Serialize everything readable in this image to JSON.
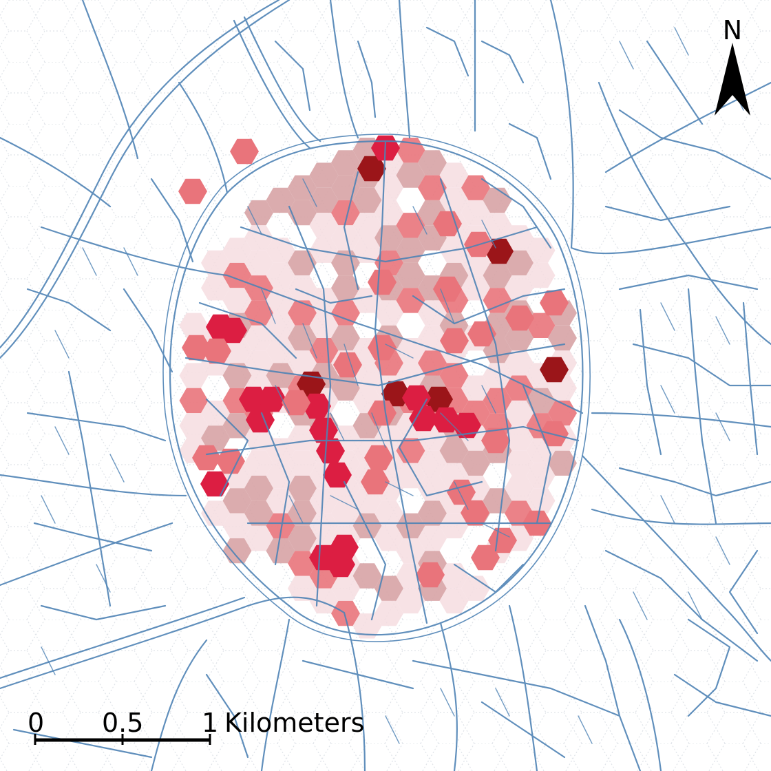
{
  "map": {
    "north_arrow": {
      "label": "N"
    },
    "scale_bar": {
      "ticks": [
        "0",
        "0.5",
        "1"
      ],
      "unit": "Kilometers"
    },
    "colors": {
      "background": "#ffffff",
      "street": "#4f83b5",
      "hex_grid_outline": "#d8dde3",
      "density_classes": [
        "#f6dde0",
        "#d7a3a5",
        "#e9747b",
        "#dc1e42",
        "#9b1519"
      ]
    },
    "density_classes_count": 5
  }
}
